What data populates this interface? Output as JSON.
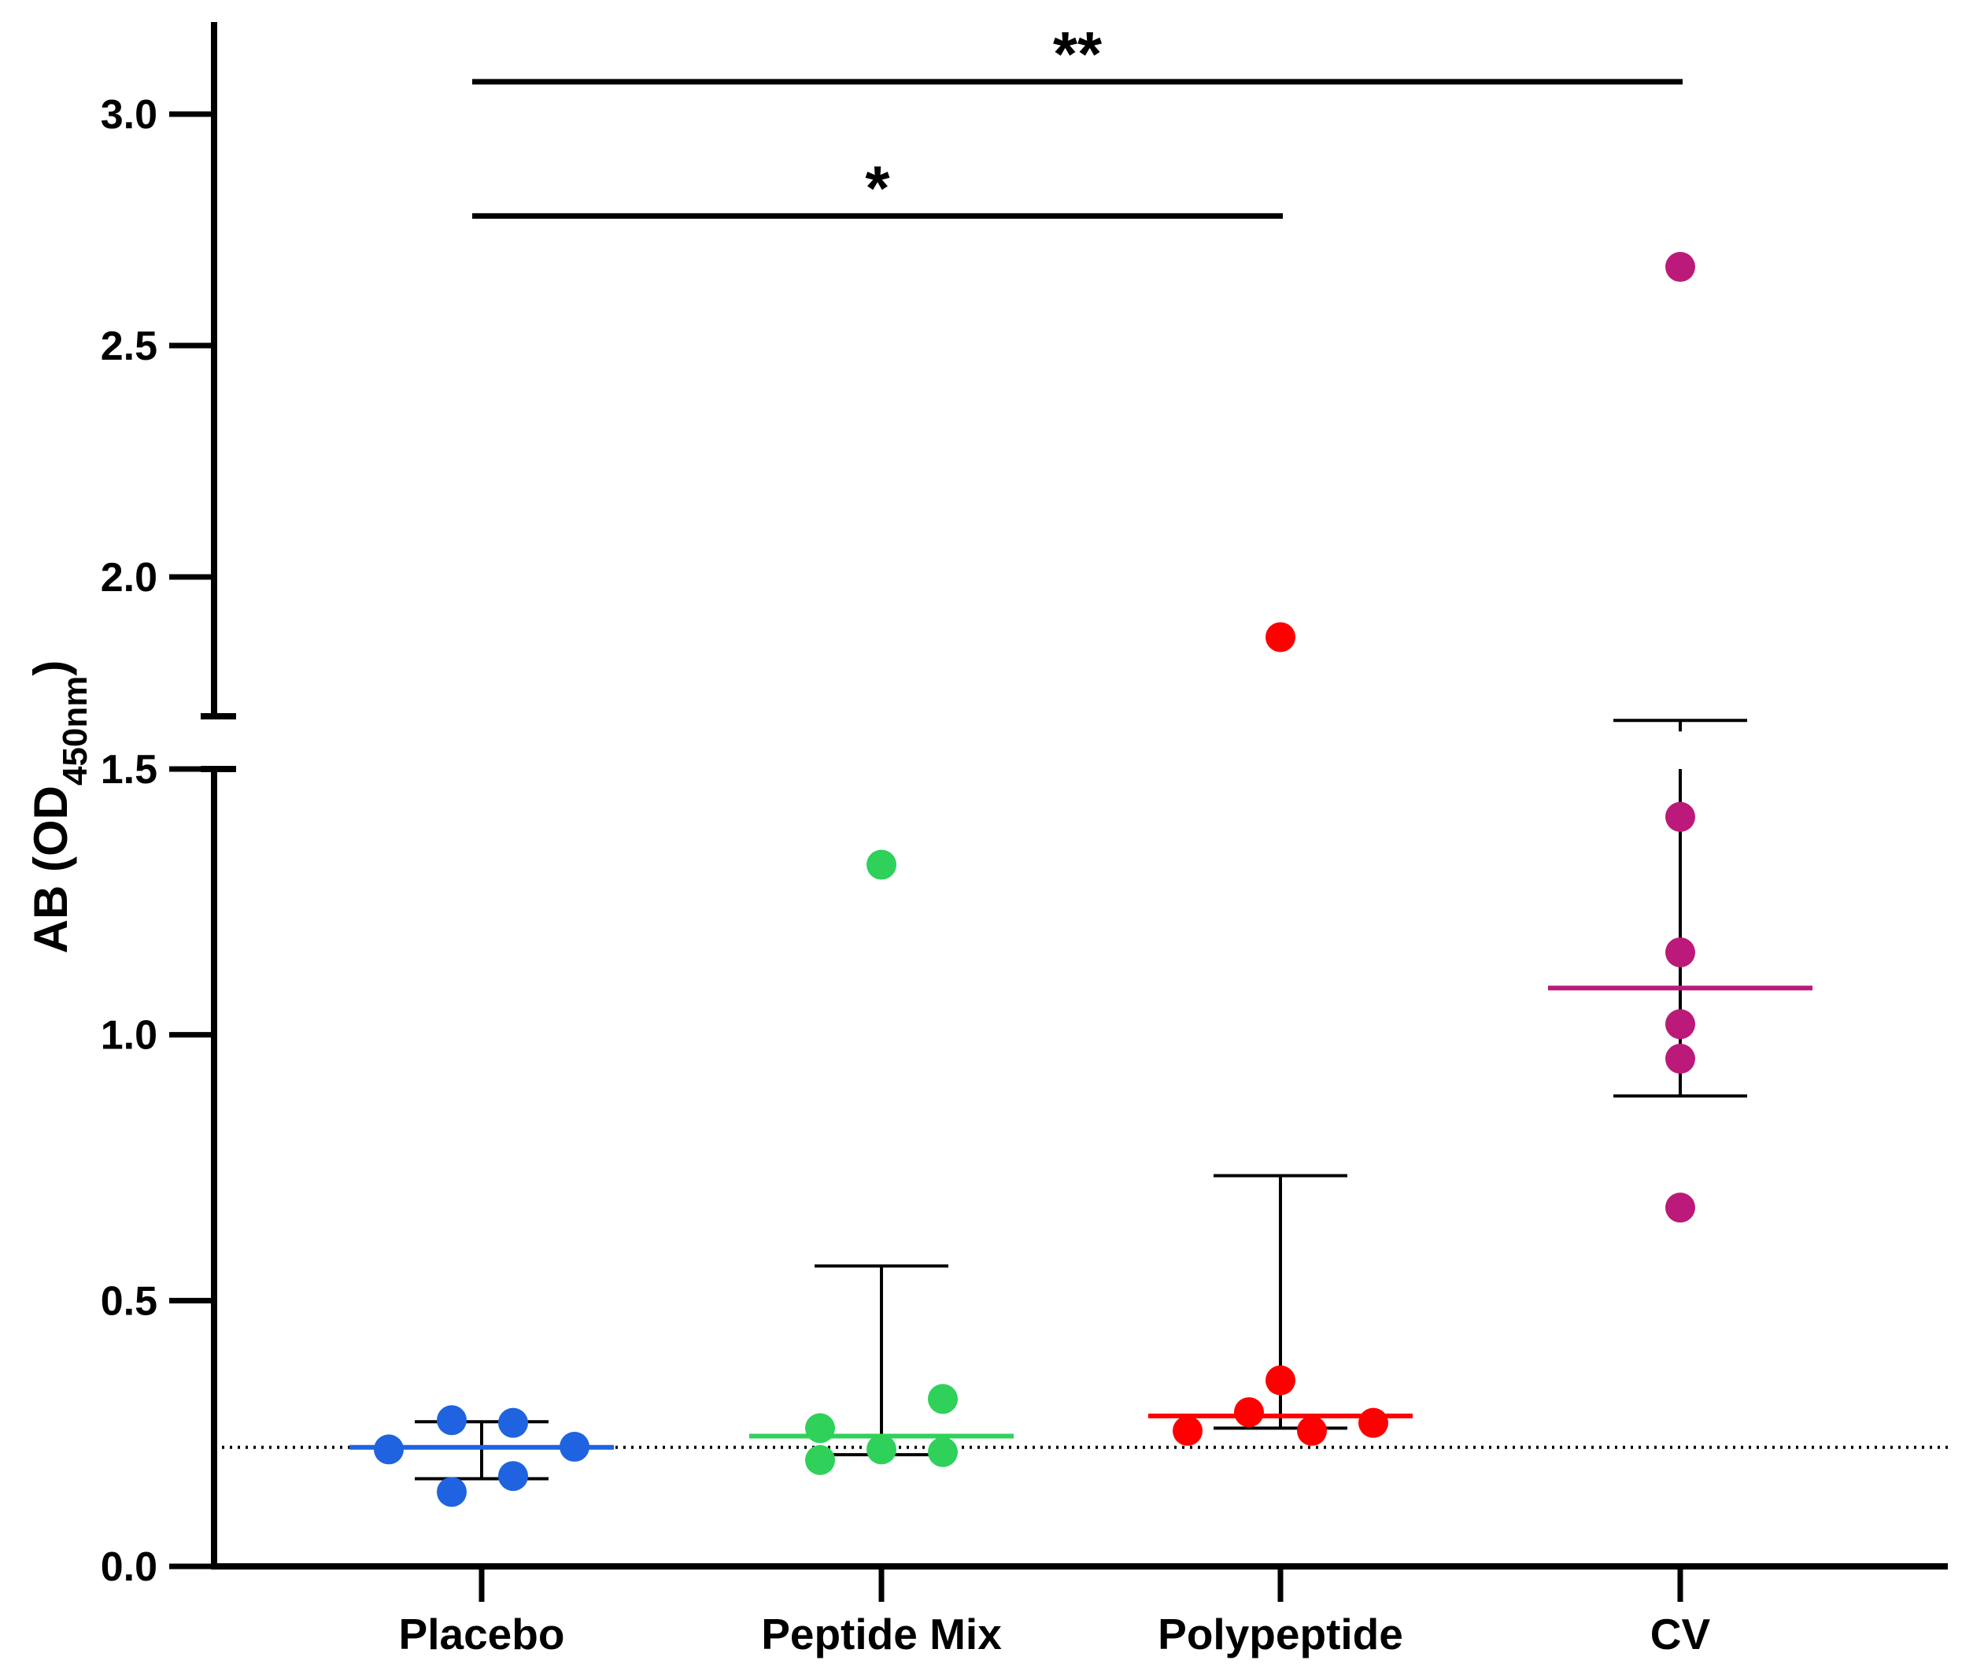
{
  "chart_data": {
    "type": "scatter",
    "title": "",
    "xlabel": "",
    "ylabel": {
      "main": "AB (OD",
      "sub": "450nm",
      "close": ")"
    },
    "ylim": [
      0,
      3.2
    ],
    "axis_break": {
      "lower": [
        0,
        1.5
      ],
      "upper": [
        1.7,
        3.2
      ]
    },
    "y_ticks": [
      0.0,
      0.5,
      1.0,
      1.5,
      2.0,
      2.5,
      3.0
    ],
    "y_tick_labels": [
      "0.0",
      "0.5",
      "1.0",
      "1.5",
      "2.0",
      "2.5",
      "3.0"
    ],
    "categories": [
      "Placebo",
      "Peptide Mix",
      "Polypeptide",
      "CV"
    ],
    "colors": [
      "#1f63e0",
      "#2fd15a",
      "#ff0000",
      "#bb1a7a"
    ],
    "series": [
      {
        "points": [
          0.22,
          0.275,
          0.14,
          0.27,
          0.17,
          0.225
        ],
        "center": 0.224,
        "error": [
          0.165,
          0.272
        ]
      },
      {
        "points": [
          0.26,
          0.2,
          1.32,
          0.22,
          0.315,
          0.215
        ],
        "center": 0.245,
        "error": [
          0.21,
          0.565
        ]
      },
      {
        "points": [
          0.255,
          0.29,
          1.87,
          0.35,
          0.255,
          0.27
        ],
        "center": 0.283,
        "error": [
          0.26,
          0.735
        ]
      },
      {
        "points": [
          2.67,
          1.41,
          1.155,
          1.02,
          0.955,
          0.675
        ],
        "center": 1.088,
        "error": [
          0.885,
          1.69
        ]
      }
    ],
    "reference_line": 0.224,
    "significance": [
      {
        "from": "Placebo",
        "to": "Polypeptide",
        "label": "*",
        "y": 2.78
      },
      {
        "from": "Placebo",
        "to": "CV",
        "label": "**",
        "y": 3.07
      }
    ],
    "grid": false,
    "legend": "none"
  }
}
